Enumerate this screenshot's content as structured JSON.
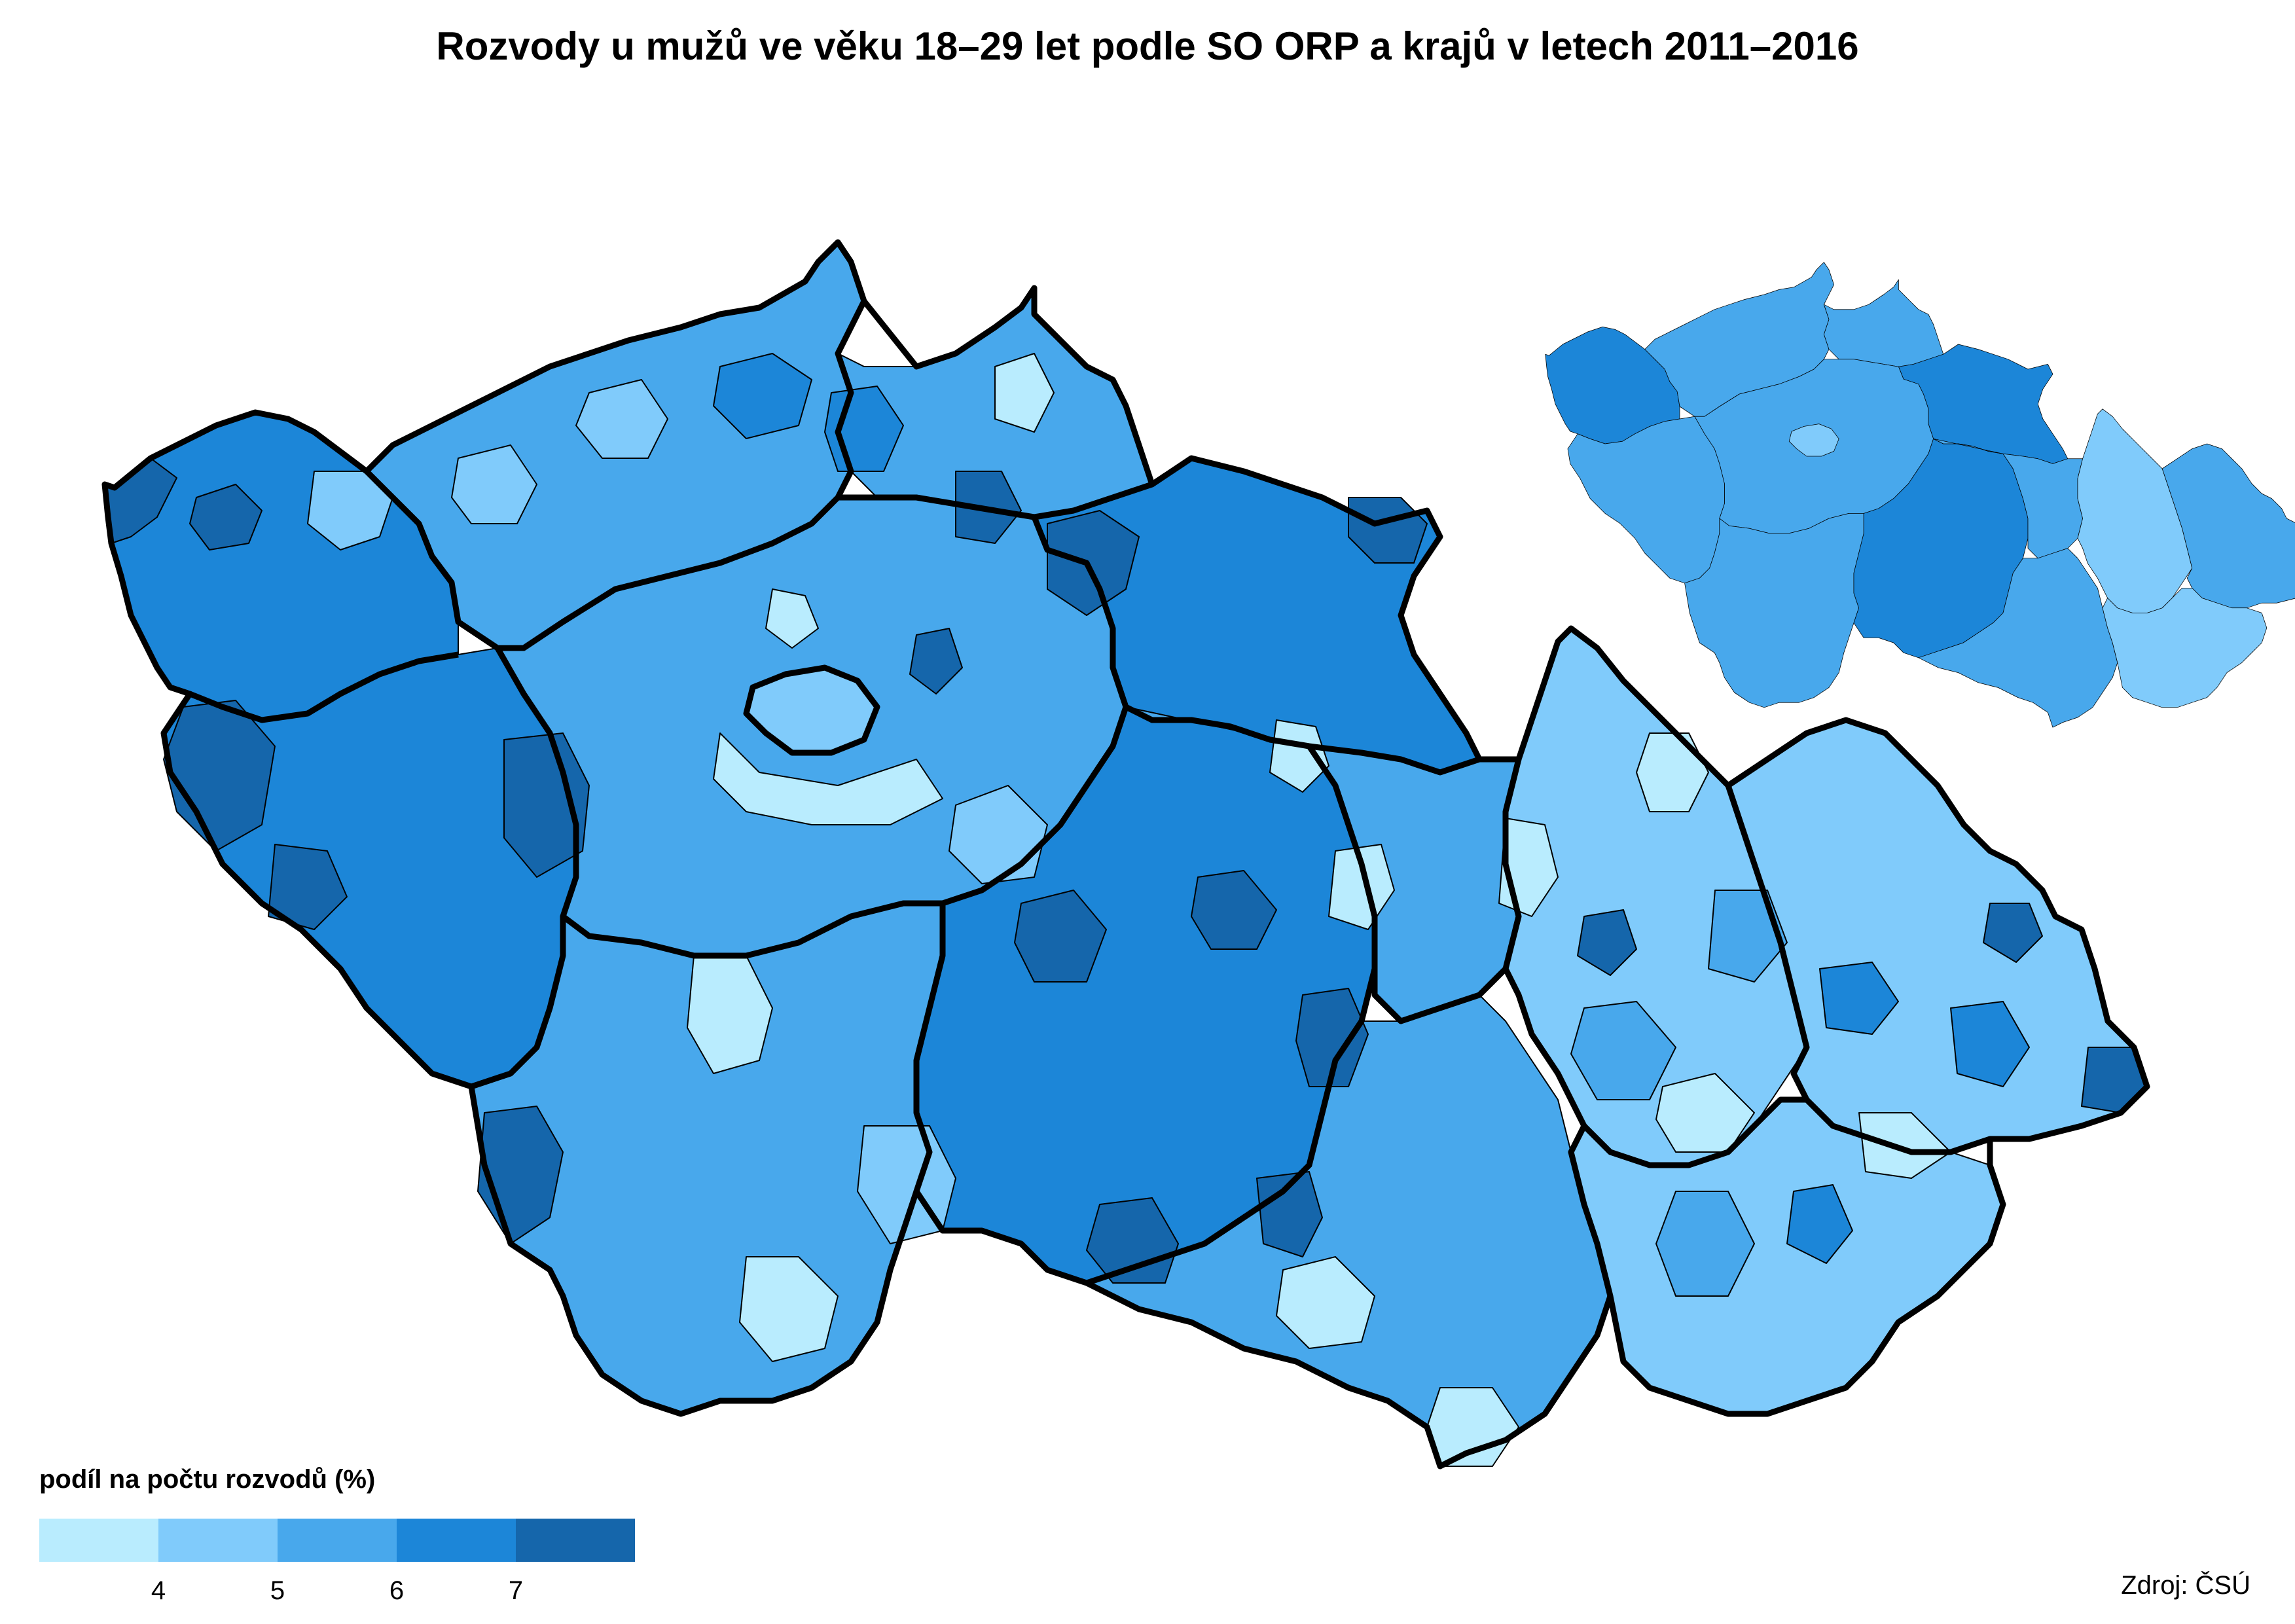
{
  "title": "Rozvody u mužů ve věku 18–29 let podle SO ORP a krajů v letech 2011–2016",
  "legend": {
    "title": "podíl na počtu rozvodů (%)",
    "classes": [
      {
        "color": "#b9ecfe"
      },
      {
        "color": "#80cbfb"
      },
      {
        "color": "#48a8ec"
      },
      {
        "color": "#1c86d8"
      },
      {
        "color": "#1566ab"
      }
    ],
    "breaks": [
      "4",
      "5",
      "6",
      "7"
    ]
  },
  "source": "Zdroj: ČSÚ",
  "colors": {
    "c1": "#b9ecfe",
    "c2": "#80cbfb",
    "c3": "#48a8ec",
    "c4": "#1c86d8",
    "c5": "#1566ab",
    "border": "#000000"
  }
}
